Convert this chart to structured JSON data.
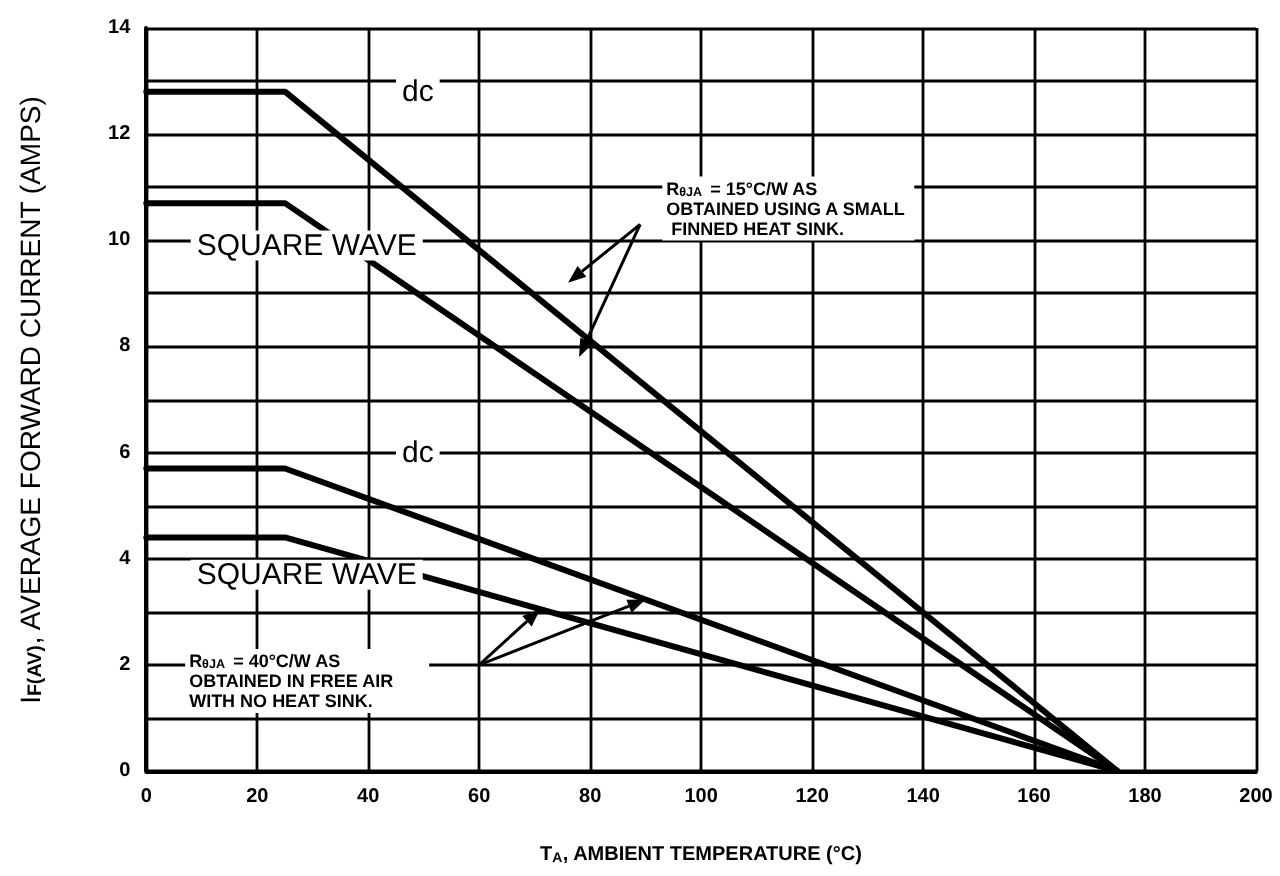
{
  "chart_data": {
    "type": "line",
    "xlabel": "T$_{A}$, AMBIENT TEMPERATURE (°C)",
    "ylabel": "I$_{F(AV)}$, AVERAGE FORWARD CURRENT (AMPS)",
    "xlim": [
      0,
      200
    ],
    "xticks": [
      0,
      20,
      40,
      60,
      80,
      100,
      120,
      140,
      160,
      180,
      200
    ],
    "ylim": [
      0,
      14
    ],
    "yticks": [
      0,
      {
        "value": 1,
        "label": null
      },
      2,
      {
        "value": 3,
        "label": null
      },
      4,
      {
        "value": 5,
        "label": null
      },
      6,
      {
        "value": 7,
        "label": null
      },
      8,
      {
        "value": 9,
        "label": null
      },
      10,
      {
        "value": 11,
        "label": null
      },
      12,
      {
        "value": 13,
        "label": null
      },
      14
    ],
    "grid": true,
    "marker": "none",
    "line_style": "solid",
    "legend": false,
    "series": [
      {
        "name": "dc",
        "color": "#000000",
        "x": [
          0,
          25,
          175
        ],
        "values": [
          12.8,
          12.8,
          0
        ]
      },
      {
        "name": "SQUARE WAVE",
        "color": "#000000",
        "x": [
          0,
          25,
          175
        ],
        "values": [
          10.7,
          10.7,
          0
        ]
      },
      {
        "name": "dc",
        "color": "#000000",
        "x": [
          0,
          25,
          175
        ],
        "values": [
          5.7,
          5.7,
          0
        ]
      },
      {
        "name": "SQUARE WAVE",
        "color": "#000000",
        "x": [
          0,
          25,
          175
        ],
        "values": [
          4.4,
          4.4,
          0
        ]
      }
    ],
    "annotations": [
      "R$_{θJA}$ = 15°C/W AS OBTAINED USING A SMALL FINNED HEAT SINK.",
      "R$_{θJA}$ = 40°C/W AS OBTAINED IN FREE AIR WITH NO HEAT SINK."
    ]
  }
}
